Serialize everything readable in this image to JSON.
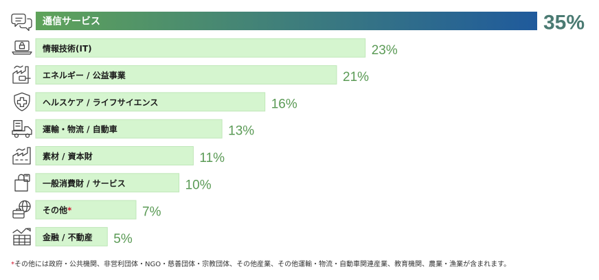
{
  "chart_data": {
    "type": "bar",
    "orientation": "horizontal",
    "unit": "%",
    "categories": [
      "通信サービス",
      "情報技術(IT)",
      "エネルギー / 公益事業",
      "ヘルスケア / ライフサイエンス",
      "運輸・物流 / 自動車",
      "素材 / 資本財",
      "一般消費財 / サービス",
      "その他",
      "金融 / 不動産"
    ],
    "values": [
      35,
      23,
      21,
      16,
      13,
      11,
      10,
      7,
      5
    ],
    "value_labels": [
      "35%",
      "23%",
      "21%",
      "16%",
      "13%",
      "11%",
      "10%",
      "7%",
      "5%"
    ],
    "asterisk_category": "その他",
    "icons": [
      "chat-bubbles-icon",
      "laptop-lock-icon",
      "factory-plug-icon",
      "shield-cross-icon",
      "delivery-truck-icon",
      "factory-icon",
      "shopping-bag-icon",
      "globe-briefcase-icon",
      "finance-chart-icon"
    ],
    "grid": false,
    "legend": "none"
  },
  "colors": {
    "highlight_bar_start": "#5fa35a",
    "highlight_bar_end": "#1f5a9c",
    "bar_fill": "#d5f5cf",
    "bar_edge": "#bfe7b8",
    "value_label": "#5a9a55",
    "top_value_label": "#4a7a72",
    "icon_stroke": "#444444"
  },
  "footnote": {
    "mark": "*",
    "text": "その他には政府・公共機関、非営利団体・NGO・慈善団体・宗教団体、その他産業、その他運輸・物流・自動車関連産業、教育機関、農業・漁業が含まれます。"
  }
}
